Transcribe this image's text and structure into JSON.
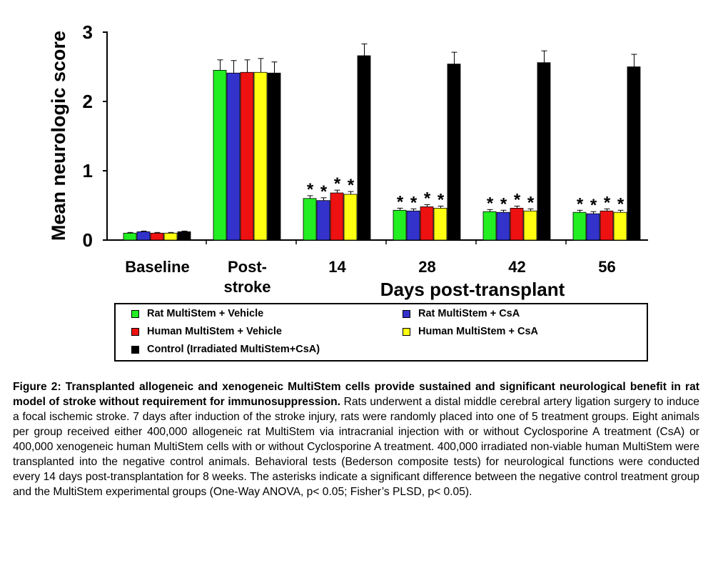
{
  "chart_data": {
    "type": "bar",
    "ylabel": "Mean neurologic score",
    "xlabel": "Days post-transplant",
    "ylim": [
      0,
      3
    ],
    "yticks": [
      "0",
      "1",
      "2",
      "3"
    ],
    "categories": [
      "Baseline",
      "Post-stroke",
      "14",
      "28",
      "42",
      "56"
    ],
    "category_labels": [
      [
        "Baseline"
      ],
      [
        "Post-",
        "stroke"
      ],
      [
        "14"
      ],
      [
        "28"
      ],
      [
        "42"
      ],
      [
        "56"
      ]
    ],
    "series": [
      {
        "name": "Rat MultiStem + Vehicle",
        "color": "#22ee22",
        "values": [
          0.1,
          2.45,
          0.6,
          0.43,
          0.41,
          0.4
        ],
        "errors": [
          0.01,
          0.15,
          0.04,
          0.03,
          0.03,
          0.03
        ]
      },
      {
        "name": "Rat MultiStem + CsA",
        "color": "#3333cc",
        "values": [
          0.12,
          2.41,
          0.57,
          0.42,
          0.4,
          0.38
        ],
        "errors": [
          0.01,
          0.18,
          0.04,
          0.03,
          0.03,
          0.03
        ]
      },
      {
        "name": "Human MultiStem + Vehicle",
        "color": "#ee1111",
        "values": [
          0.1,
          2.42,
          0.68,
          0.48,
          0.46,
          0.42
        ],
        "errors": [
          0.01,
          0.18,
          0.04,
          0.03,
          0.03,
          0.03
        ]
      },
      {
        "name": "Human MultiStem + CsA",
        "color": "#ffff11",
        "values": [
          0.1,
          2.42,
          0.66,
          0.46,
          0.42,
          0.4
        ],
        "errors": [
          0.01,
          0.2,
          0.04,
          0.03,
          0.03,
          0.03
        ]
      },
      {
        "name": "Control (Irradiated MultiStem+CsA)",
        "color": "#000000",
        "values": [
          0.12,
          2.41,
          2.66,
          2.54,
          2.56,
          2.5
        ],
        "errors": [
          0.01,
          0.16,
          0.17,
          0.17,
          0.17,
          0.18
        ]
      }
    ],
    "significance_marker": "*",
    "significant_categories": [
      "14",
      "28",
      "42",
      "56"
    ],
    "legend_position": "bottom"
  },
  "caption": {
    "title": "Figure 2: Transplanted allogeneic and xenogeneic MultiStem cells provide sustained and significant neurological benefit in rat model of stroke without requirement for immunosuppression.",
    "body": "Rats underwent a distal middle cerebral artery ligation surgery to induce a focal ischemic stroke. 7 days after induction of the stroke injury, rats were randomly placed into one of 5 treatment groups. Eight animals per group received either 400,000 allogeneic rat MultiStem via intracranial injection with or without Cyclosporine A treatment (CsA) or 400,000 xenogeneic human MultiStem cells with or without Cyclosporine A treatment. 400,000 irradiated non-viable human MultiStem were transplanted into the negative control animals. Behavioral tests (Bederson composite tests) for neurological functions were conducted every 14 days post-transplantation for 8 weeks. The asterisks indicate a significant difference between the negative control treatment group and the MultiStem experimental groups (One-Way ANOVA, p< 0.05; Fisher’s PLSD, p< 0.05)."
  }
}
